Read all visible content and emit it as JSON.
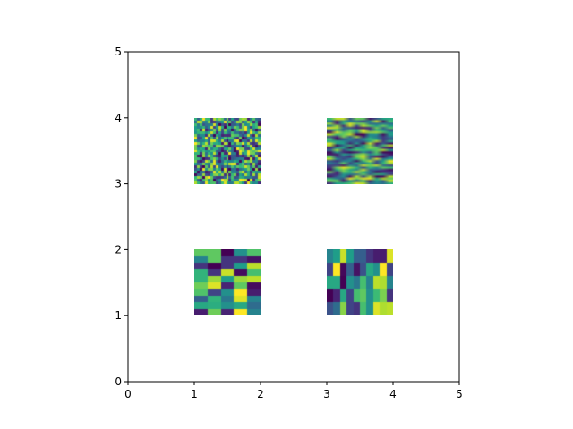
{
  "chart_data": {
    "type": "heatmap",
    "title": "",
    "xlabel": "",
    "ylabel": "",
    "xlim": [
      0,
      5
    ],
    "ylim": [
      0,
      5
    ],
    "xticks": [
      "0",
      "1",
      "2",
      "3",
      "4",
      "5"
    ],
    "yticks": [
      "0",
      "1",
      "2",
      "3",
      "4",
      "5"
    ],
    "grid": false,
    "colormap": "viridis",
    "images": [
      {
        "name": "bottom-left",
        "extent": [
          1,
          2,
          1,
          2
        ],
        "interpolation": "nearest",
        "rows": [
          [
            0.75,
            0.75,
            0.0,
            0.5,
            0.72
          ],
          [
            0.45,
            0.75,
            0.15,
            0.15,
            0.05
          ],
          [
            0.15,
            0.0,
            0.15,
            0.55,
            0.9
          ],
          [
            0.65,
            0.15,
            0.92,
            0.03,
            0.7
          ],
          [
            0.65,
            0.85,
            0.55,
            0.85,
            0.9
          ],
          [
            0.78,
            0.95,
            0.1,
            0.75,
            0.03
          ],
          [
            0.72,
            0.2,
            0.5,
            1.0,
            0.08
          ],
          [
            0.3,
            0.65,
            0.4,
            0.95,
            0.45
          ],
          [
            0.6,
            0.62,
            0.5,
            0.6,
            0.35
          ],
          [
            0.08,
            0.78,
            0.1,
            1.0,
            0.45
          ]
        ]
      },
      {
        "name": "bottom-right",
        "extent": [
          3,
          4,
          1,
          2
        ],
        "interpolation": "nearest",
        "rows": [
          [
            0.45,
            0.55,
            0.92,
            0.55,
            0.3,
            0.3,
            0.15,
            0.08,
            0.08,
            0.95
          ],
          [
            0.2,
            1.0,
            0.02,
            0.3,
            0.05,
            0.25,
            0.6,
            0.5,
            1.0,
            0.2
          ],
          [
            0.6,
            0.6,
            0.0,
            0.5,
            0.4,
            0.7,
            0.45,
            0.9,
            0.88,
            0.45
          ],
          [
            0.0,
            0.1,
            0.6,
            0.2,
            0.7,
            0.75,
            0.5,
            0.68,
            0.8,
            0.15
          ],
          [
            0.25,
            0.35,
            0.82,
            0.2,
            0.15,
            0.7,
            0.5,
            0.95,
            0.88,
            0.9
          ]
        ]
      },
      {
        "name": "top-left",
        "extent": [
          1,
          2,
          3,
          4
        ],
        "interpolation": "nearest",
        "random_shape": [
          25,
          25
        ]
      },
      {
        "name": "top-right",
        "extent": [
          3,
          4,
          3,
          4
        ],
        "interpolation": "bilinear",
        "random_shape": [
          30,
          10
        ]
      }
    ]
  }
}
